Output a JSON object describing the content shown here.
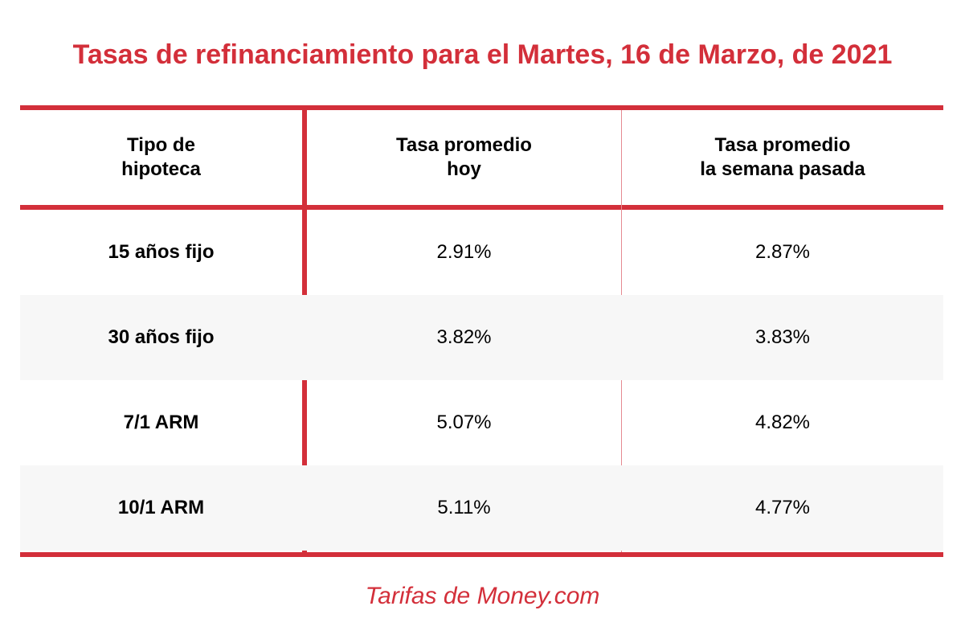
{
  "title": "Tasas de refinanciamiento para el Martes, 16 de Marzo, de 2021",
  "footer": "Tarifas de Money.com",
  "colors": {
    "accent": "#d32f3a",
    "alt_row": "#f7f7f7"
  },
  "chart_data": {
    "type": "table",
    "title": "Tasas de refinanciamiento para el Martes, 16 de Marzo, de 2021",
    "columns": [
      "Tipo de\nhipoteca",
      "Tasa promedio\nhoy",
      "Tasa promedio\nla semana pasada"
    ],
    "rows": [
      [
        "15 años fijo",
        "2.91%",
        "2.87%"
      ],
      [
        "30 años fijo",
        "3.82%",
        "3.83%"
      ],
      [
        "7/1 ARM",
        "5.07%",
        "4.82%"
      ],
      [
        "10/1 ARM",
        "5.11%",
        "4.77%"
      ]
    ]
  }
}
